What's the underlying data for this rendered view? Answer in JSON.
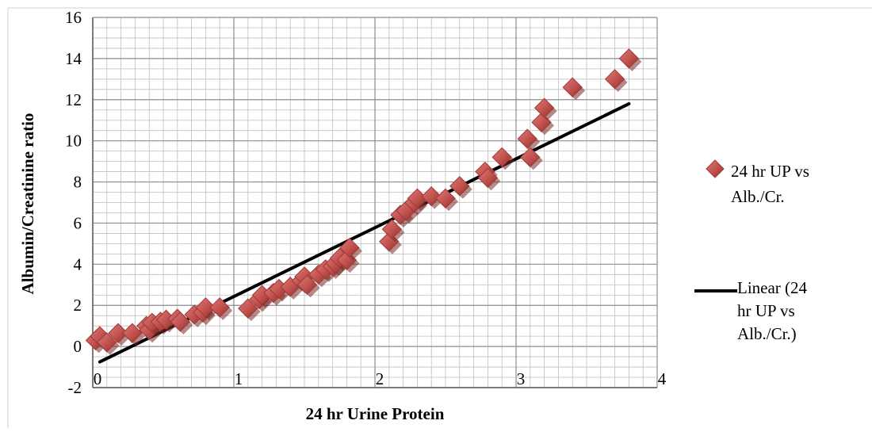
{
  "chart_data": {
    "type": "scatter",
    "xlabel": "24 hr Urine Protein",
    "ylabel": "Albumin/Creatinine ratio",
    "xlim": [
      0,
      4
    ],
    "ylim": [
      -2,
      16
    ],
    "x_ticks": [
      "0",
      "1",
      "2",
      "3",
      "4"
    ],
    "y_ticks": [
      "-2",
      "0",
      "2",
      "4",
      "6",
      "8",
      "10",
      "12",
      "14",
      "16"
    ],
    "grid": true,
    "legend_position": "right",
    "colors": {
      "points": "#c0504d",
      "trend": "#000000",
      "grid": "#bfbfbf"
    },
    "series": [
      {
        "name": "24 hr UP vs Alb./Cr.",
        "type": "scatter",
        "points": [
          [
            0.02,
            0.3
          ],
          [
            0.05,
            0.5
          ],
          [
            0.1,
            0.2
          ],
          [
            0.18,
            0.65
          ],
          [
            0.28,
            0.65
          ],
          [
            0.38,
            1.0
          ],
          [
            0.4,
            0.8
          ],
          [
            0.42,
            1.15
          ],
          [
            0.48,
            1.2
          ],
          [
            0.52,
            1.3
          ],
          [
            0.6,
            1.35
          ],
          [
            0.62,
            1.2
          ],
          [
            0.72,
            1.55
          ],
          [
            0.78,
            1.65
          ],
          [
            0.8,
            1.9
          ],
          [
            0.9,
            1.9
          ],
          [
            1.1,
            1.85
          ],
          [
            1.18,
            2.3
          ],
          [
            1.2,
            2.5
          ],
          [
            1.28,
            2.6
          ],
          [
            1.32,
            2.8
          ],
          [
            1.4,
            2.9
          ],
          [
            1.48,
            3.2
          ],
          [
            1.5,
            3.4
          ],
          [
            1.52,
            3.0
          ],
          [
            1.6,
            3.5
          ],
          [
            1.65,
            3.75
          ],
          [
            1.7,
            3.9
          ],
          [
            1.72,
            4.05
          ],
          [
            1.75,
            4.3
          ],
          [
            1.8,
            4.2
          ],
          [
            1.82,
            4.8
          ],
          [
            2.1,
            5.1
          ],
          [
            2.12,
            5.7
          ],
          [
            2.18,
            6.4
          ],
          [
            2.22,
            6.6
          ],
          [
            2.28,
            7.0
          ],
          [
            2.3,
            7.2
          ],
          [
            2.4,
            7.3
          ],
          [
            2.5,
            7.2
          ],
          [
            2.6,
            7.8
          ],
          [
            2.78,
            8.5
          ],
          [
            2.8,
            8.2
          ],
          [
            2.9,
            9.2
          ],
          [
            3.08,
            10.1
          ],
          [
            3.1,
            9.2
          ],
          [
            3.18,
            10.9
          ],
          [
            3.2,
            11.6
          ],
          [
            3.4,
            12.6
          ],
          [
            3.7,
            13.0
          ],
          [
            3.8,
            14.0
          ]
        ]
      },
      {
        "name": "Linear (24 hr UP vs Alb./Cr.)",
        "type": "line",
        "points": [
          [
            0.05,
            -0.75
          ],
          [
            3.8,
            11.8
          ]
        ]
      }
    ]
  }
}
